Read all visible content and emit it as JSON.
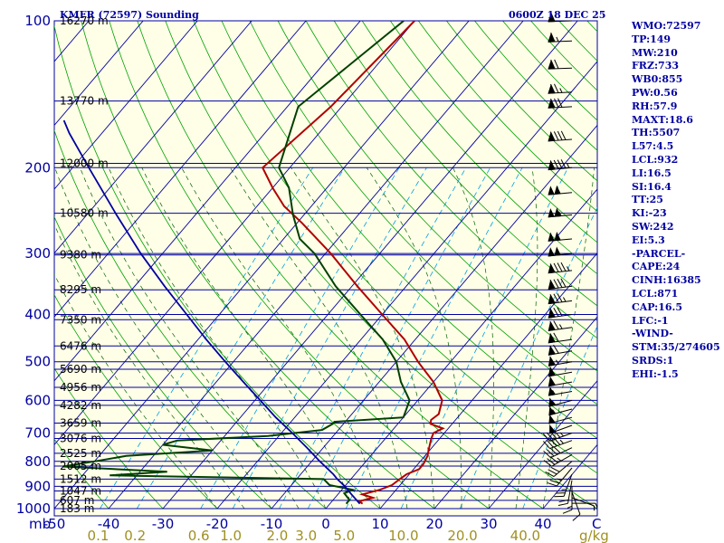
{
  "title_left": "KMFR (72597) Sounding",
  "title_right": "0600Z 18 DEC 25",
  "stats": [
    "WMO:72597",
    "TP:149",
    "MW:210",
    "FRZ:733",
    "WB0:855",
    "PW:0.56",
    "RH:57.9",
    "MAXT:18.6",
    "TH:5507",
    "L57:4.5",
    "LCL:932",
    "LI:16.5",
    "SI:16.4",
    "TT:25",
    "KI:-23",
    "SW:242",
    "EI:5.3",
    "-PARCEL-",
    "CAPE:24",
    "CINH:16385",
    "LCL:871",
    "CAP:16.5",
    "LFC:-1",
    "-WIND-",
    "STM:35/274605",
    "SRDS:1",
    "EHI:-1.5"
  ],
  "colors": {
    "temperature": "#b00000",
    "dewpoint": "#004000",
    "parcel": "#0000a0",
    "isobar": "#0000a0",
    "dry_adiabat": "#00a000",
    "mixing_ratio": "#00a0e0",
    "axis_text": "#0000a0",
    "mix_text": "#a09020"
  },
  "chart_data": {
    "type": "line",
    "title": "KMFR (72597) Sounding",
    "subtitle": "0600Z 18 DEC 25",
    "xlabel": "",
    "ylabel": "mb",
    "mixing_unit": "g/kg",
    "y_scale": "log",
    "ylim": [
      1000,
      100
    ],
    "xlim": [
      -50,
      50
    ],
    "pressure_ticks": [
      100,
      200,
      300,
      400,
      500,
      600,
      700,
      800,
      900,
      1000
    ],
    "temperature_ticks": [
      -50,
      -40,
      -30,
      -20,
      -10,
      0,
      10,
      20,
      30,
      40
    ],
    "temperature_tick_labels": [
      "-50",
      "-40",
      "-30",
      "-20",
      "-10",
      "0",
      "10",
      "20",
      "30",
      "40"
    ],
    "temperature_axis_end_label": "C",
    "mixing_ratio_labels": [
      "0.1",
      "0.2",
      "0.6",
      "1.0",
      "2.0",
      "3.0",
      "5.0",
      "10.0",
      "20.0",
      "40.0"
    ],
    "height_labels": [
      {
        "p": 100,
        "label": "16270 m"
      },
      {
        "p": 146,
        "label": "13770 m"
      },
      {
        "p": 196,
        "label": "12000 m"
      },
      {
        "p": 248,
        "label": "10580 m"
      },
      {
        "p": 302,
        "label": "9380 m"
      },
      {
        "p": 356,
        "label": "8295 m"
      },
      {
        "p": 410,
        "label": "7350 m"
      },
      {
        "p": 464,
        "label": "6476 m"
      },
      {
        "p": 518,
        "label": "5690 m"
      },
      {
        "p": 564,
        "label": "4956 m"
      },
      {
        "p": 614,
        "label": "4282 m"
      },
      {
        "p": 668,
        "label": "3659 m"
      },
      {
        "p": 718,
        "label": "3076 m"
      },
      {
        "p": 770,
        "label": "2525 m"
      },
      {
        "p": 818,
        "label": "2005 m"
      },
      {
        "p": 870,
        "label": "1512 m"
      },
      {
        "p": 920,
        "label": "1047 m"
      },
      {
        "p": 962,
        "label": "607 m"
      },
      {
        "p": 1000,
        "label": "183 m"
      }
    ],
    "series": [
      {
        "name": "Temperature",
        "points": [
          [
            977,
            6
          ],
          [
            966,
            5
          ],
          [
            950,
            7
          ],
          [
            935,
            4.5
          ],
          [
            915,
            7
          ],
          [
            895,
            8.5
          ],
          [
            870,
            9
          ],
          [
            850,
            9.5
          ],
          [
            830,
            11
          ],
          [
            810,
            11
          ],
          [
            780,
            10.5
          ],
          [
            750,
            9.5
          ],
          [
            720,
            8.5
          ],
          [
            700,
            8
          ],
          [
            685,
            9
          ],
          [
            670,
            6
          ],
          [
            658,
            5.5
          ],
          [
            640,
            6
          ],
          [
            600,
            4.5
          ],
          [
            550,
            0
          ],
          [
            500,
            -6
          ],
          [
            450,
            -12
          ],
          [
            400,
            -20
          ],
          [
            350,
            -29
          ],
          [
            300,
            -39
          ],
          [
            260,
            -49
          ],
          [
            240,
            -55
          ],
          [
            220,
            -60
          ],
          [
            200,
            -65
          ],
          [
            150,
            -62
          ],
          [
            100,
            -60
          ]
        ]
      },
      {
        "name": "Dewpoint",
        "points": [
          [
            977,
            3
          ],
          [
            960,
            3
          ],
          [
            945,
            2
          ],
          [
            930,
            1
          ],
          [
            915,
            2
          ],
          [
            895,
            -3
          ],
          [
            870,
            -5
          ],
          [
            855,
            -45
          ],
          [
            840,
            -35
          ],
          [
            820,
            -55
          ],
          [
            800,
            -50
          ],
          [
            780,
            -45
          ],
          [
            760,
            -30
          ],
          [
            740,
            -40
          ],
          [
            725,
            -38
          ],
          [
            710,
            -22
          ],
          [
            690,
            -13
          ],
          [
            670,
            -12
          ],
          [
            664,
            -12
          ],
          [
            650,
            0
          ],
          [
            600,
            -1.5
          ],
          [
            550,
            -6
          ],
          [
            500,
            -10
          ],
          [
            450,
            -16
          ],
          [
            400,
            -24
          ],
          [
            350,
            -33
          ],
          [
            300,
            -42
          ],
          [
            280,
            -47
          ],
          [
            250,
            -52
          ],
          [
            220,
            -57
          ],
          [
            200,
            -62
          ],
          [
            150,
            -68
          ],
          [
            100,
            -62
          ]
        ]
      },
      {
        "name": "Parcel",
        "points": [
          [
            977,
            5.5
          ],
          [
            935,
            2.5
          ],
          [
            900,
            0
          ],
          [
            870,
            -2.5
          ],
          [
            850,
            -4
          ],
          [
            800,
            -8.5
          ],
          [
            750,
            -13
          ],
          [
            700,
            -18
          ],
          [
            650,
            -23.5
          ],
          [
            600,
            -29
          ],
          [
            550,
            -35
          ],
          [
            500,
            -41.5
          ],
          [
            450,
            -48.5
          ],
          [
            400,
            -56
          ],
          [
            350,
            -64.5
          ],
          [
            300,
            -74
          ],
          [
            250,
            -84.5
          ],
          [
            200,
            -97
          ],
          [
            170,
            -106
          ],
          [
            160,
            -109
          ]
        ]
      }
    ],
    "wind_barbs": [
      {
        "p": 975,
        "dir": 90,
        "kt": 5
      },
      {
        "p": 950,
        "dir": 110,
        "kt": 5
      },
      {
        "p": 925,
        "dir": 160,
        "kt": 10
      },
      {
        "p": 900,
        "dir": 180,
        "kt": 15
      },
      {
        "p": 875,
        "dir": 190,
        "kt": 20
      },
      {
        "p": 850,
        "dir": 200,
        "kt": 25
      },
      {
        "p": 825,
        "dir": 220,
        "kt": 25
      },
      {
        "p": 800,
        "dir": 230,
        "kt": 30
      },
      {
        "p": 775,
        "dir": 240,
        "kt": 35
      },
      {
        "p": 750,
        "dir": 245,
        "kt": 40
      },
      {
        "p": 725,
        "dir": 250,
        "kt": 45
      },
      {
        "p": 700,
        "dir": 250,
        "kt": 45
      },
      {
        "p": 675,
        "dir": 250,
        "kt": 50
      },
      {
        "p": 650,
        "dir": 255,
        "kt": 50
      },
      {
        "p": 625,
        "dir": 255,
        "kt": 55
      },
      {
        "p": 600,
        "dir": 255,
        "kt": 55
      },
      {
        "p": 575,
        "dir": 260,
        "kt": 55
      },
      {
        "p": 550,
        "dir": 260,
        "kt": 60
      },
      {
        "p": 525,
        "dir": 260,
        "kt": 60
      },
      {
        "p": 500,
        "dir": 260,
        "kt": 65
      },
      {
        "p": 475,
        "dir": 260,
        "kt": 70
      },
      {
        "p": 450,
        "dir": 262,
        "kt": 70
      },
      {
        "p": 425,
        "dir": 262,
        "kt": 75
      },
      {
        "p": 400,
        "dir": 262,
        "kt": 80
      },
      {
        "p": 375,
        "dir": 263,
        "kt": 85
      },
      {
        "p": 350,
        "dir": 263,
        "kt": 90
      },
      {
        "p": 325,
        "dir": 264,
        "kt": 95
      },
      {
        "p": 300,
        "dir": 264,
        "kt": 100
      },
      {
        "p": 280,
        "dir": 265,
        "kt": 100
      },
      {
        "p": 250,
        "dir": 265,
        "kt": 105
      },
      {
        "p": 225,
        "dir": 265,
        "kt": 100
      },
      {
        "p": 200,
        "dir": 265,
        "kt": 95
      },
      {
        "p": 175,
        "dir": 266,
        "kt": 90
      },
      {
        "p": 150,
        "dir": 267,
        "kt": 80
      },
      {
        "p": 140,
        "dir": 267,
        "kt": 75
      },
      {
        "p": 125,
        "dir": 268,
        "kt": 70
      },
      {
        "p": 110,
        "dir": 268,
        "kt": 65
      },
      {
        "p": 100,
        "dir": 268,
        "kt": 60
      }
    ]
  }
}
